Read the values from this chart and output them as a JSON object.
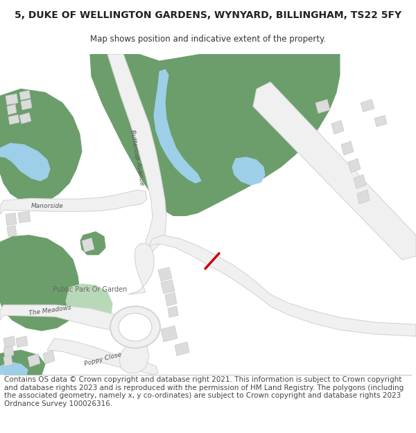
{
  "title": "5, DUKE OF WELLINGTON GARDENS, WYNYARD, BILLINGHAM, TS22 5FY",
  "subtitle": "Map shows position and indicative extent of the property.",
  "title_fontsize": 10,
  "subtitle_fontsize": 8.5,
  "footer_text": "Contains OS data © Crown copyright and database right 2021. This information is subject to Crown copyright and database rights 2023 and is reproduced with the permission of HM Land Registry. The polygons (including the associated geometry, namely x, y co-ordinates) are subject to Crown copyright and database rights 2023 Ordnance Survey 100026316.",
  "footer_fontsize": 7.5,
  "bg_color": "#ffffff",
  "map_bg": "#ffffff",
  "green_dark": "#6b9e6b",
  "green_light": "#8dbf8d",
  "green_lighter": "#b8d9b8",
  "blue_water": "#9ecfe8",
  "road_fill": "#f0f0f0",
  "road_edge": "#d5d5d5",
  "building_color": "#dcdcdc",
  "building_stroke": "#c8c8c8",
  "red_line_color": "#cc0000",
  "text_color": "#444444",
  "label_color": "#555555"
}
